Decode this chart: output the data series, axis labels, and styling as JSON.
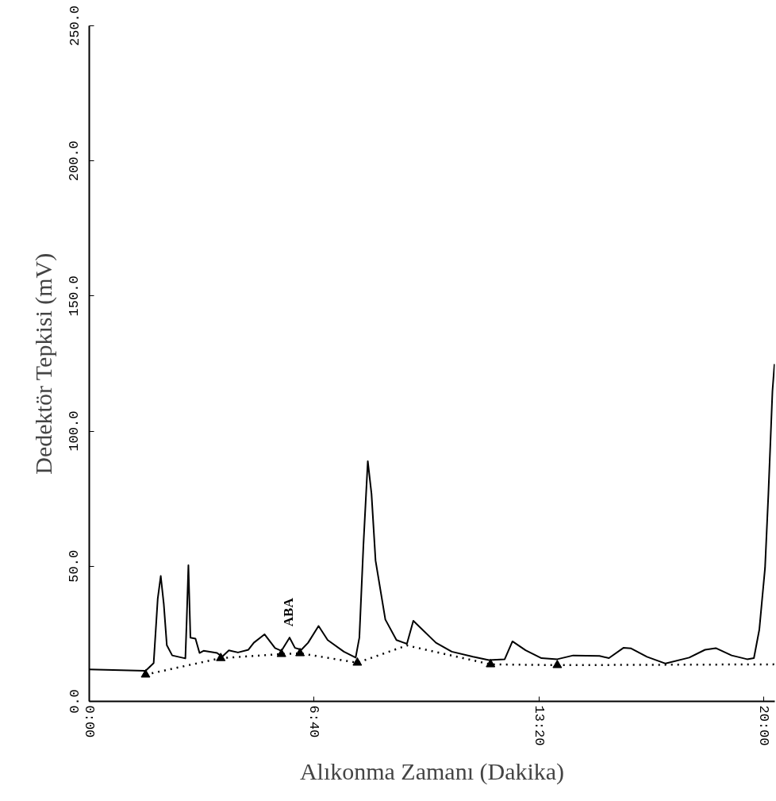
{
  "chart_data": {
    "type": "line",
    "xlabel": "Alıkonma Zamanı (Dakika)",
    "ylabel": "Dedektör Tepkisi (mV)",
    "xlim": [
      0,
      20.33
    ],
    "ylim": [
      0,
      250
    ],
    "xticks": [
      {
        "value": 0,
        "label": "0:00"
      },
      {
        "value": 6.667,
        "label": "6:40"
      },
      {
        "value": 13.333,
        "label": "13:20"
      },
      {
        "value": 20,
        "label": "20:00"
      }
    ],
    "yticks": [
      {
        "value": 0,
        "label": "0.0"
      },
      {
        "value": 50,
        "label": "50.0"
      },
      {
        "value": 100,
        "label": "100.0"
      },
      {
        "value": 150,
        "label": "150.0"
      },
      {
        "value": 200,
        "label": "200.0"
      },
      {
        "value": 250,
        "label": "250.0"
      }
    ],
    "grid": false,
    "annotations": [
      {
        "text": "ABA",
        "x": 5.94,
        "y": 23.6
      }
    ],
    "series": [
      {
        "type": "line",
        "line_style": "solid",
        "color": "#000000",
        "x": [
          0,
          1.67,
          1.91,
          2.03,
          2.12,
          2.21,
          2.3,
          2.46,
          2.85,
          2.89,
          2.94,
          3.0,
          3.15,
          3.27,
          3.39,
          3.79,
          3.94,
          4.14,
          4.41,
          4.72,
          4.88,
          5.2,
          5.51,
          5.7,
          5.94,
          6.1,
          6.29,
          6.49,
          6.8,
          7.07,
          7.55,
          7.9,
          8.01,
          8.13,
          8.26,
          8.37,
          8.49,
          8.78,
          9.11,
          9.42,
          9.61,
          9.81,
          10.28,
          10.75,
          11.38,
          11.85,
          12.32,
          12.55,
          12.94,
          13.41,
          13.88,
          14.35,
          15.13,
          15.41,
          15.84,
          16.07,
          16.54,
          17.09,
          17.79,
          18.26,
          18.58,
          19.05,
          19.51,
          19.71,
          19.87,
          20.04,
          20.14,
          20.26,
          20.32
        ],
        "values": [
          11.8,
          11.3,
          14.2,
          37.9,
          46.4,
          36,
          20.8,
          17,
          15.9,
          30.3,
          50.4,
          23.6,
          23.2,
          17.9,
          18.7,
          17.9,
          16.5,
          18.9,
          18.1,
          19.1,
          21.7,
          24.8,
          19.7,
          18.7,
          23.6,
          19.8,
          19.1,
          21.7,
          27.9,
          22.7,
          18.4,
          16.2,
          23.6,
          57.8,
          88.9,
          76.8,
          52.1,
          30.3,
          22.7,
          21.3,
          29.8,
          27.4,
          21.7,
          18.4,
          16.5,
          15.3,
          15.6,
          22.2,
          18.9,
          16,
          15.6,
          17,
          16.8,
          16,
          19.8,
          19.6,
          16.5,
          14,
          16.2,
          19.1,
          19.7,
          17,
          15.6,
          16,
          26.5,
          49.3,
          76.9,
          114.8,
          124.8
        ]
      },
      {
        "type": "line",
        "line_style": "dotted",
        "color": "#000000",
        "x": [
          1.67,
          3.9,
          5.7,
          6.25,
          7.95,
          9.42,
          11.9,
          13.88,
          20.33
        ],
        "values": [
          9.9,
          16,
          17.5,
          17.8,
          14.3,
          20.7,
          13.7,
          13.4,
          13.7
        ]
      },
      {
        "type": "scatter",
        "marker": "triangle",
        "color": "#000000",
        "x": [
          1.67,
          3.9,
          5.7,
          6.25,
          7.95,
          11.9,
          13.88
        ],
        "values": [
          9.9,
          16,
          17.5,
          17.8,
          14.3,
          13.7,
          13.4
        ]
      }
    ]
  }
}
